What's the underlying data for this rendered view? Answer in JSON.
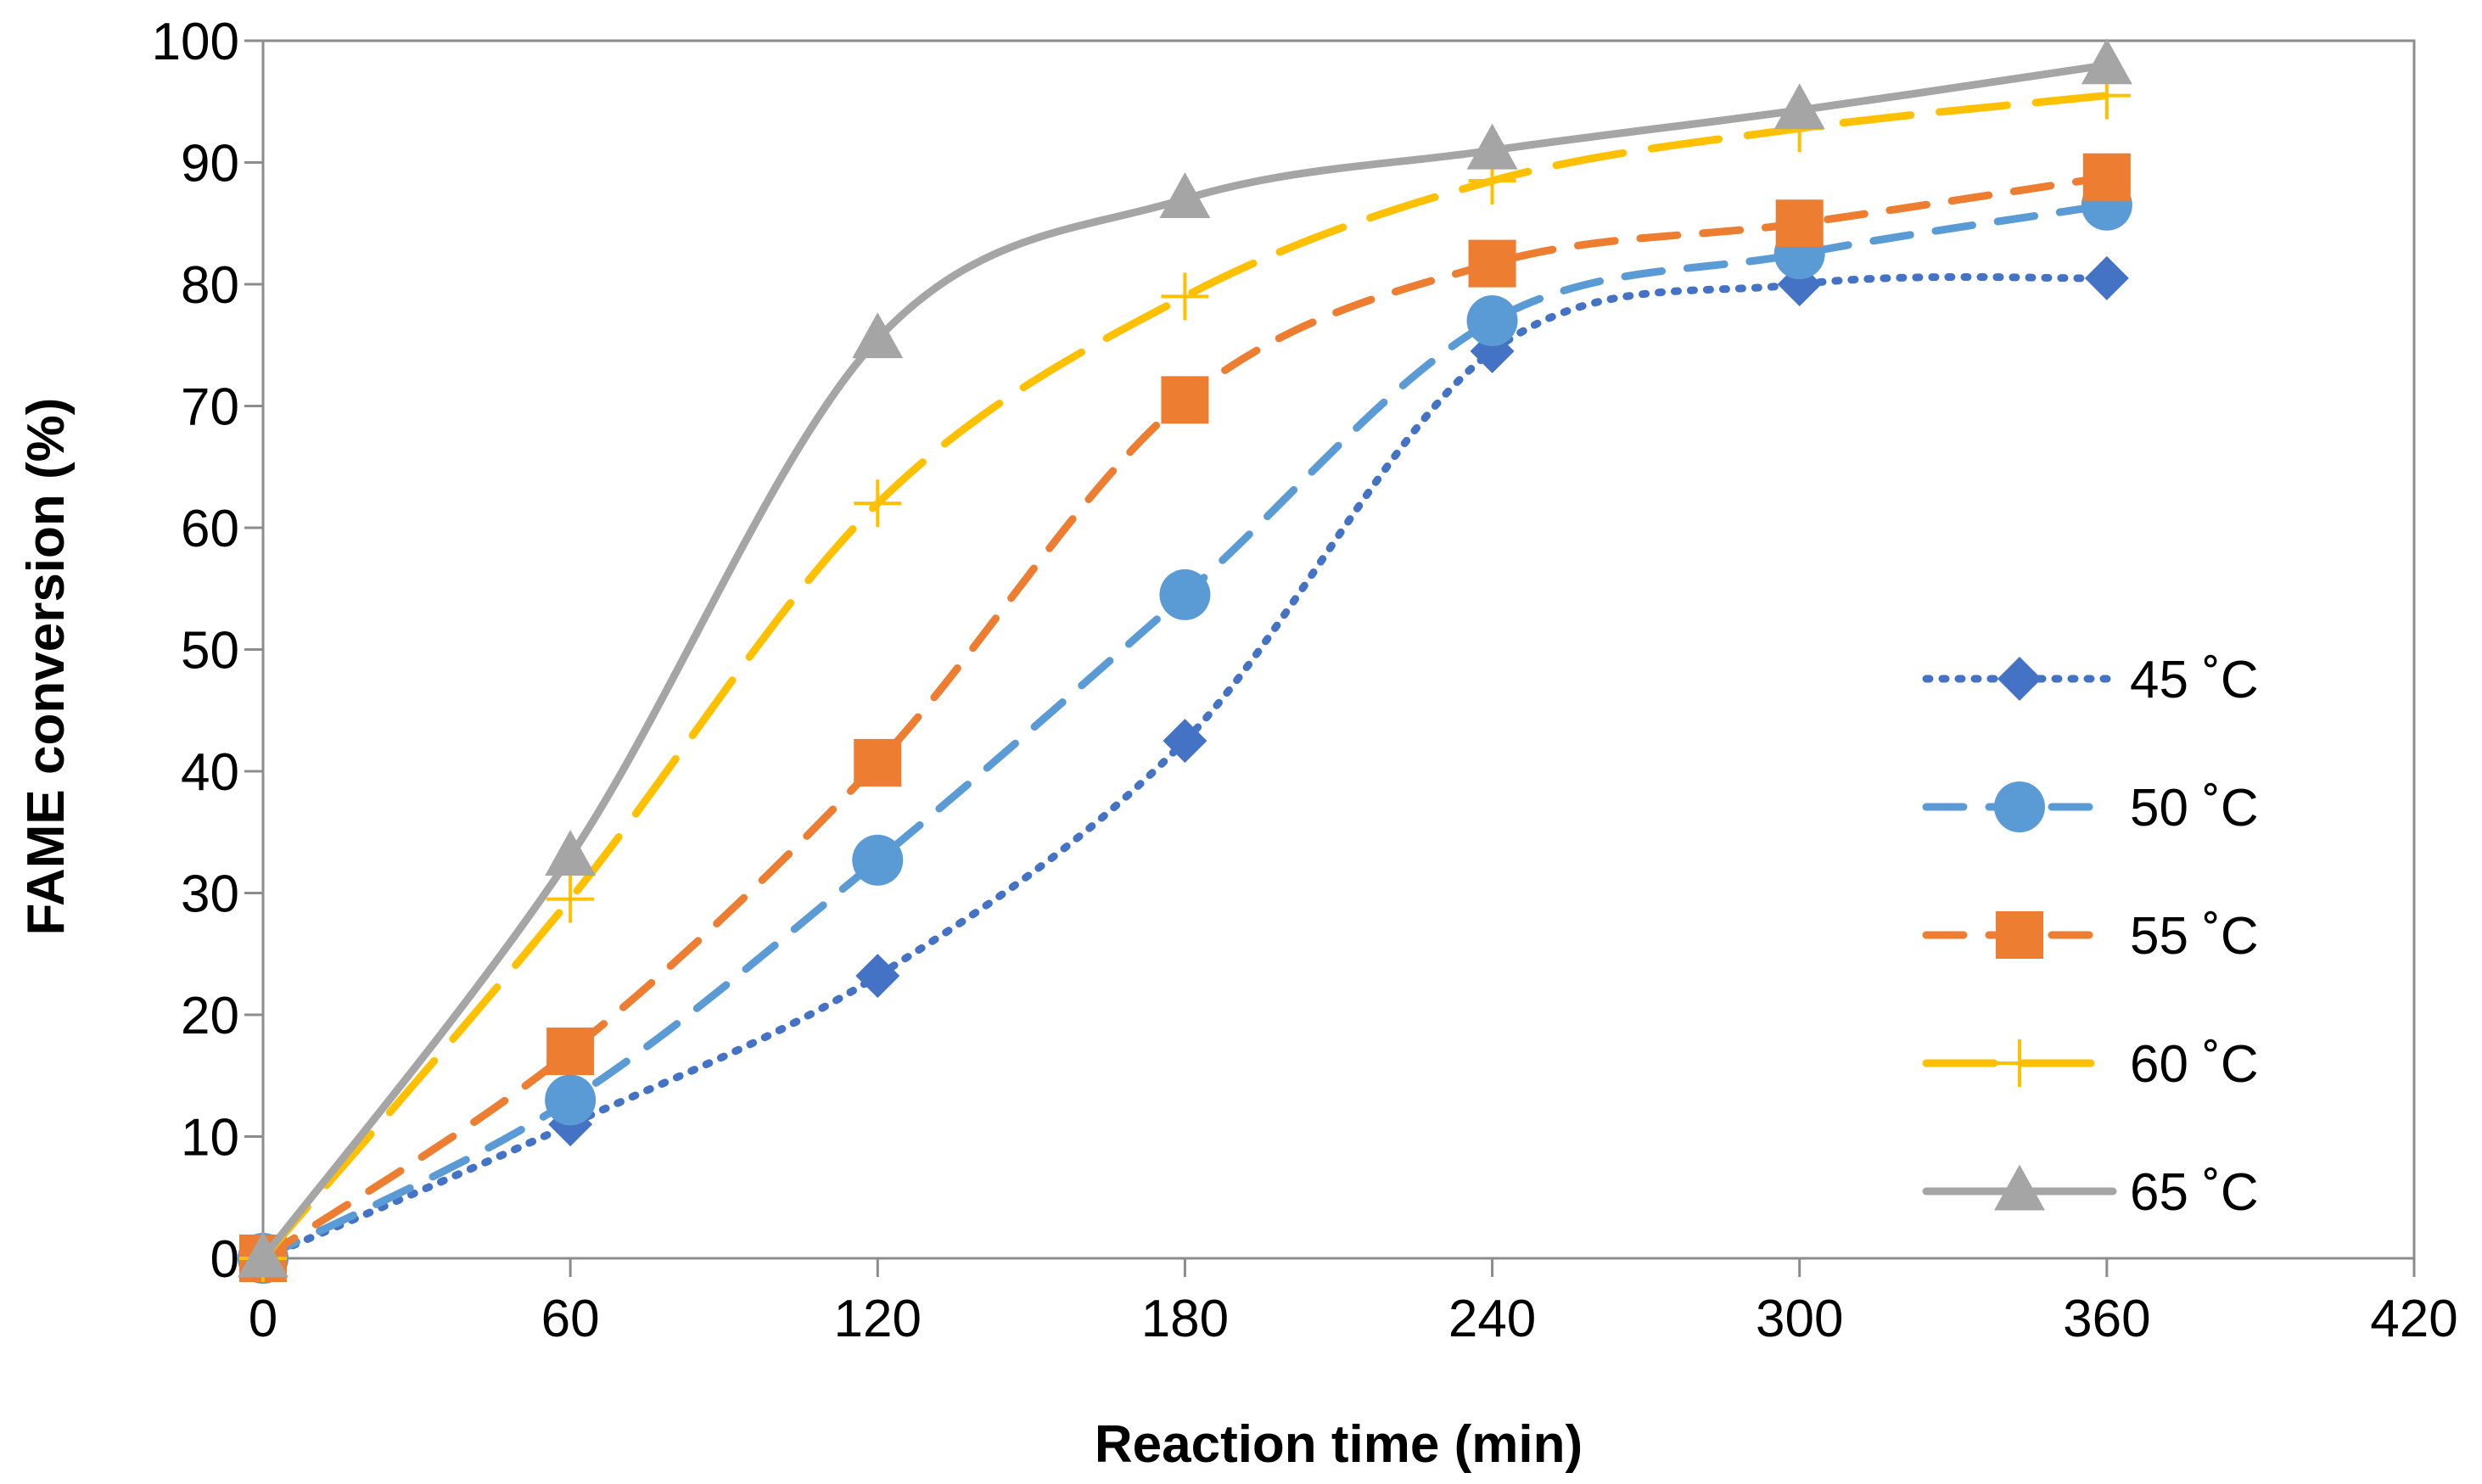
{
  "chart_data": {
    "type": "line",
    "title": "",
    "xlabel": "Reaction time (min)",
    "ylabel": "FAME conversion (%)",
    "xlim": [
      0,
      420
    ],
    "ylim": [
      0,
      100
    ],
    "xticks": [
      "0",
      "60",
      "120",
      "180",
      "240",
      "300",
      "360",
      "420"
    ],
    "yticks": [
      "0",
      "10",
      "20",
      "30",
      "40",
      "50",
      "60",
      "70",
      "80",
      "90",
      "100"
    ],
    "grid": false,
    "legend_position": "right",
    "x": [
      0,
      60,
      120,
      180,
      240,
      300,
      360
    ],
    "series": [
      {
        "name": "45 ˚C",
        "color": "#4472C4",
        "dash": "dotted",
        "marker": "diamond",
        "values": [
          0,
          11,
          23.2,
          42.5,
          74.5,
          80,
          80.5
        ]
      },
      {
        "name": "50 ˚C",
        "color": "#5B9BD5",
        "dash": "dashed",
        "marker": "circle",
        "values": [
          0,
          13,
          32.7,
          54.5,
          77,
          82.5,
          86.5
        ]
      },
      {
        "name": "55 ˚C",
        "color": "#ED7D31",
        "dash": "dashed",
        "marker": "square",
        "values": [
          0,
          17,
          40.7,
          70.5,
          81.7,
          85,
          88.8
        ]
      },
      {
        "name": "60 ˚C",
        "color": "#FFC000",
        "dash": "long-dash",
        "marker": "plus",
        "values": [
          0,
          29.5,
          62,
          79,
          88.5,
          92.8,
          95.5
        ]
      },
      {
        "name": "65 ˚C",
        "color": "#A5A5A5",
        "dash": "solid",
        "marker": "triangle",
        "values": [
          0,
          33,
          75.5,
          87,
          91,
          94.3,
          98
        ]
      }
    ]
  }
}
